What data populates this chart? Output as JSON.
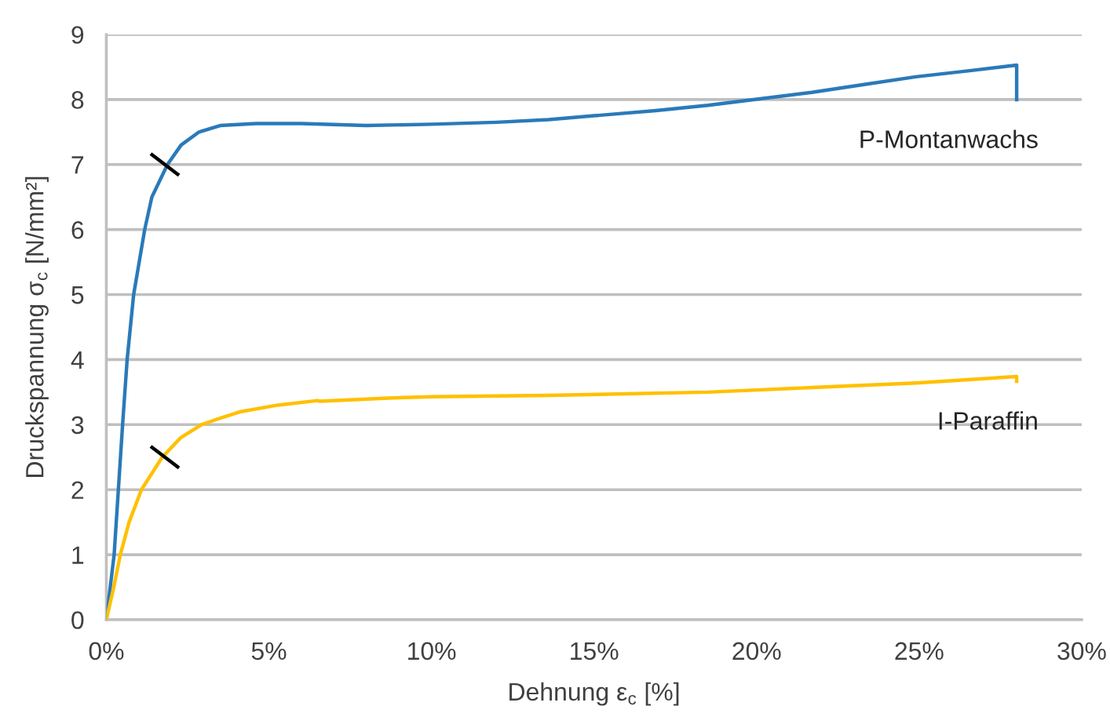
{
  "chart_data": {
    "type": "line",
    "xlabel": "Dehnung ε$_{c}$ [%]",
    "ylabel": "Druckspannung σ$_{c}$ [N/mm²]",
    "xlim": [
      0,
      30
    ],
    "xticks": [
      {
        "value": 0,
        "label": "0%"
      },
      {
        "value": 5,
        "label": "5%"
      },
      {
        "value": 10,
        "label": "10%"
      },
      {
        "value": 15,
        "label": "15%"
      },
      {
        "value": 20,
        "label": "20%"
      },
      {
        "value": 25,
        "label": "25%"
      },
      {
        "value": 30,
        "label": "30%"
      }
    ],
    "ylim": [
      0,
      9
    ],
    "yticks": [
      0,
      1,
      2,
      3,
      4,
      5,
      6,
      7,
      8,
      9
    ],
    "grid": "y",
    "series": [
      {
        "name": "P-Montanwachs",
        "color": "#2a7ab9",
        "x": [
          0,
          0.24,
          0.37,
          0.5,
          0.64,
          0.84,
          1.18,
          1.4,
          1.88,
          2.3,
          2.85,
          3.5,
          4.6,
          6.0,
          8.0,
          10.0,
          12.0,
          13.6,
          15.0,
          16.9,
          18.5,
          20.1,
          21.7,
          23.3,
          24.9,
          26.5,
          28.0,
          28.0
        ],
        "values": [
          0,
          1,
          2,
          3,
          4,
          5,
          6,
          6.5,
          7.0,
          7.3,
          7.5,
          7.6,
          7.63,
          7.63,
          7.6,
          7.62,
          7.65,
          7.69,
          7.75,
          7.83,
          7.91,
          8.01,
          8.11,
          8.23,
          8.35,
          8.44,
          8.53,
          7.97
        ]
      },
      {
        "name": "I-Paraffin",
        "color": "#ffc000",
        "x": [
          0,
          0.23,
          0.43,
          0.7,
          1.08,
          1.72,
          2.29,
          2.93,
          3.5,
          4.14,
          5.27,
          6.5,
          6.55,
          8.8,
          10.0,
          13.6,
          18.5,
          21.7,
          24.9,
          28.0,
          28.0
        ],
        "values": [
          0,
          0.5,
          1.0,
          1.5,
          2.0,
          2.5,
          2.8,
          3.0,
          3.1,
          3.2,
          3.3,
          3.37,
          3.36,
          3.41,
          3.43,
          3.45,
          3.5,
          3.57,
          3.64,
          3.74,
          3.64
        ]
      },
      {
        "type": "scatter",
        "color": "#000000",
        "x": [
          1.8,
          1.8
        ],
        "values": [
          7.0,
          2.5
        ]
      }
    ]
  }
}
